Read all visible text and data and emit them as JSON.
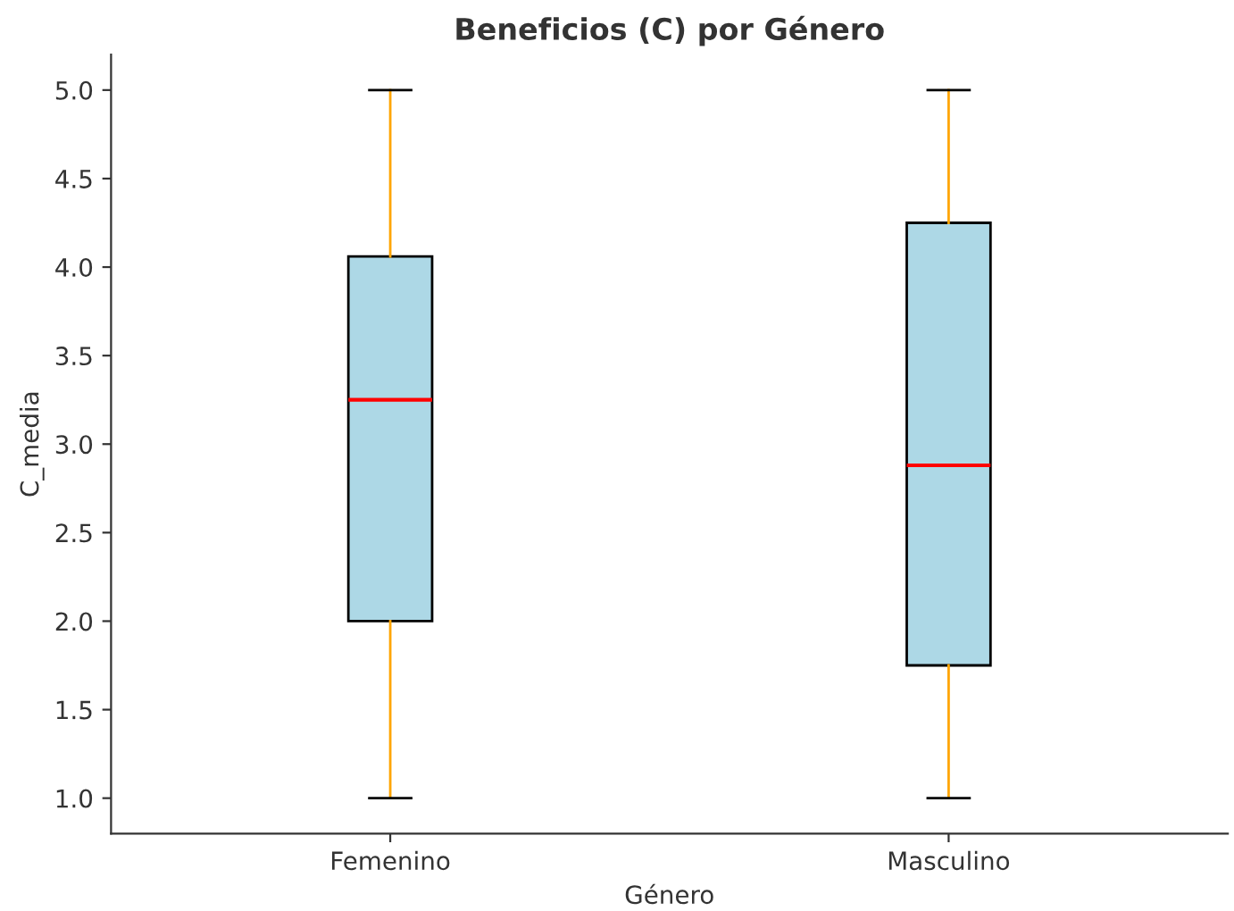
{
  "chart_data": {
    "type": "box",
    "title": "Beneficios (C) por Género",
    "xlabel": "Género",
    "ylabel": "C_media",
    "categories": [
      "Femenino",
      "Masculino"
    ],
    "boxes": [
      {
        "low": 1.0,
        "q1": 2.0,
        "median": 3.25,
        "q3": 4.06,
        "high": 5.0
      },
      {
        "low": 1.0,
        "q1": 1.75,
        "median": 2.88,
        "q3": 4.25,
        "high": 5.0
      }
    ],
    "color": "#add8e6",
    "ylim": [
      0.8,
      5.2
    ],
    "yticks": [
      {
        "value": 1.0,
        "label": "1.0"
      },
      {
        "value": 1.5,
        "label": "1.5"
      },
      {
        "value": 2.0,
        "label": "2.0"
      },
      {
        "value": 2.5,
        "label": "2.5"
      },
      {
        "value": 3.0,
        "label": "3.0"
      },
      {
        "value": 3.5,
        "label": "3.5"
      },
      {
        "value": 4.0,
        "label": "4.0"
      },
      {
        "value": 4.5,
        "label": "4.5"
      },
      {
        "value": 5.0,
        "label": "5.0"
      }
    ],
    "grid": false,
    "legend": false
  }
}
